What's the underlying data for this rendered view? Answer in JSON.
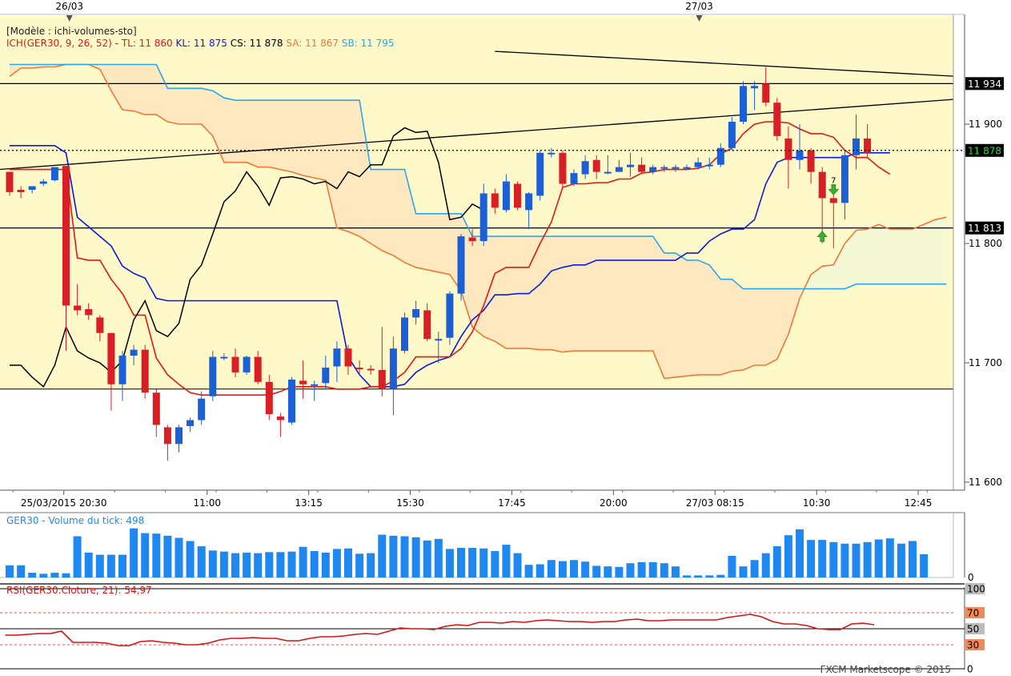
{
  "chart_data": [
    {
      "type": "candlestick",
      "instrument": "GER30",
      "date_markers": [
        "26/03",
        "27/03"
      ],
      "header": {
        "template": "[Modèle : ichi-volumes-sto]",
        "indicator": "ICH(GER30, 9, 26, 52) -",
        "tl": "TL: 11 860",
        "kl": "KL: 11 875",
        "cs": "CS: 11 878",
        "sa": "SA: 11 867",
        "sb": "SB: 11 795"
      },
      "y_ticks": [
        11600,
        11700,
        11800,
        11900
      ],
      "y_tick_labels": [
        "11 600",
        "11 700",
        "11 800",
        "11 900"
      ],
      "ylim": [
        11600,
        11966
      ],
      "x_tick_labels": [
        {
          "i": 4.8,
          "label": "25/03/2015 20:30"
        },
        {
          "i": 17.5,
          "label": "11:00"
        },
        {
          "i": 26.5,
          "label": "13:15"
        },
        {
          "i": 35.5,
          "label": "15:30"
        },
        {
          "i": 44.5,
          "label": "17:45"
        },
        {
          "i": 53.5,
          "label": "20:00"
        },
        {
          "i": 62.5,
          "label": "27/03 08:15"
        },
        {
          "i": 71.5,
          "label": "10:30"
        },
        {
          "i": 80.5,
          "label": "12:45"
        }
      ],
      "price_markers": [
        {
          "value": 11934,
          "label": "11 934",
          "style": "resistance"
        },
        {
          "value": 11878,
          "label": "11 878",
          "style": "current"
        },
        {
          "value": 11813,
          "label": "11 813",
          "style": "support"
        }
      ],
      "support_lines": [
        11934,
        11813,
        11678
      ],
      "trendlines": [
        {
          "from": [
            -1,
            11862
          ],
          "to": [
            84,
            11921
          ]
        },
        {
          "from": [
            43,
            11961
          ],
          "to": [
            84,
            11940
          ]
        }
      ],
      "signals": [
        {
          "i": 72,
          "type": "buy",
          "value": 11805
        },
        {
          "i": 73,
          "type": "sell",
          "value": 11846,
          "label": "7"
        }
      ],
      "candles": [
        {
          "o": 11860,
          "h": 11860,
          "l": 11840,
          "c": 11843
        },
        {
          "o": 11845,
          "h": 11848,
          "l": 11838,
          "c": 11843
        },
        {
          "o": 11845,
          "h": 11848,
          "l": 11842,
          "c": 11848
        },
        {
          "o": 11850,
          "h": 11854,
          "l": 11848,
          "c": 11852
        },
        {
          "o": 11853,
          "h": 11864,
          "l": 11852,
          "c": 11864
        },
        {
          "o": 11865,
          "h": 11865,
          "l": 11710,
          "c": 11748
        },
        {
          "o": 11748,
          "h": 11766,
          "l": 11740,
          "c": 11744
        },
        {
          "o": 11745,
          "h": 11750,
          "l": 11736,
          "c": 11740
        },
        {
          "o": 11738,
          "h": 11740,
          "l": 11718,
          "c": 11725
        },
        {
          "o": 11725,
          "h": 11725,
          "l": 11660,
          "c": 11682
        },
        {
          "o": 11682,
          "h": 11710,
          "l": 11668,
          "c": 11706
        },
        {
          "o": 11706,
          "h": 11715,
          "l": 11698,
          "c": 11711
        },
        {
          "o": 11711,
          "h": 11715,
          "l": 11670,
          "c": 11675
        },
        {
          "o": 11675,
          "h": 11678,
          "l": 11638,
          "c": 11648
        },
        {
          "o": 11646,
          "h": 11648,
          "l": 11618,
          "c": 11632
        },
        {
          "o": 11632,
          "h": 11648,
          "l": 11625,
          "c": 11646
        },
        {
          "o": 11647,
          "h": 11654,
          "l": 11642,
          "c": 11652
        },
        {
          "o": 11652,
          "h": 11676,
          "l": 11648,
          "c": 11670
        },
        {
          "o": 11672,
          "h": 11710,
          "l": 11668,
          "c": 11705
        },
        {
          "o": 11705,
          "h": 11708,
          "l": 11702,
          "c": 11705
        },
        {
          "o": 11705,
          "h": 11712,
          "l": 11688,
          "c": 11692
        },
        {
          "o": 11692,
          "h": 11706,
          "l": 11690,
          "c": 11705
        },
        {
          "o": 11705,
          "h": 11710,
          "l": 11682,
          "c": 11684
        },
        {
          "o": 11684,
          "h": 11690,
          "l": 11652,
          "c": 11657
        },
        {
          "o": 11655,
          "h": 11658,
          "l": 11638,
          "c": 11652
        },
        {
          "o": 11650,
          "h": 11688,
          "l": 11648,
          "c": 11686
        },
        {
          "o": 11685,
          "h": 11702,
          "l": 11670,
          "c": 11682
        },
        {
          "o": 11682,
          "h": 11685,
          "l": 11668,
          "c": 11682
        },
        {
          "o": 11683,
          "h": 11706,
          "l": 11678,
          "c": 11696
        },
        {
          "o": 11697,
          "h": 11718,
          "l": 11684,
          "c": 11712
        },
        {
          "o": 11712,
          "h": 11715,
          "l": 11690,
          "c": 11697
        },
        {
          "o": 11696,
          "h": 11702,
          "l": 11690,
          "c": 11695
        },
        {
          "o": 11695,
          "h": 11698,
          "l": 11690,
          "c": 11694
        },
        {
          "o": 11694,
          "h": 11730,
          "l": 11672,
          "c": 11678
        },
        {
          "o": 11678,
          "h": 11722,
          "l": 11656,
          "c": 11712
        },
        {
          "o": 11710,
          "h": 11742,
          "l": 11708,
          "c": 11738
        },
        {
          "o": 11738,
          "h": 11752,
          "l": 11732,
          "c": 11745
        },
        {
          "o": 11744,
          "h": 11750,
          "l": 11718,
          "c": 11720
        },
        {
          "o": 11720,
          "h": 11726,
          "l": 11700,
          "c": 11720
        },
        {
          "o": 11721,
          "h": 11760,
          "l": 11715,
          "c": 11758
        },
        {
          "o": 11758,
          "h": 11808,
          "l": 11752,
          "c": 11806
        },
        {
          "o": 11805,
          "h": 11812,
          "l": 11798,
          "c": 11802
        },
        {
          "o": 11802,
          "h": 11850,
          "l": 11798,
          "c": 11842
        },
        {
          "o": 11842,
          "h": 11846,
          "l": 11825,
          "c": 11830
        },
        {
          "o": 11828,
          "h": 11858,
          "l": 11826,
          "c": 11852
        },
        {
          "o": 11850,
          "h": 11852,
          "l": 11828,
          "c": 11830
        },
        {
          "o": 11828,
          "h": 11843,
          "l": 11812,
          "c": 11842
        },
        {
          "o": 11840,
          "h": 11878,
          "l": 11836,
          "c": 11876
        },
        {
          "o": 11876,
          "h": 11880,
          "l": 11872,
          "c": 11876
        },
        {
          "o": 11876,
          "h": 11878,
          "l": 11846,
          "c": 11850
        },
        {
          "o": 11850,
          "h": 11862,
          "l": 11848,
          "c": 11859
        },
        {
          "o": 11858,
          "h": 11874,
          "l": 11854,
          "c": 11869
        },
        {
          "o": 11870,
          "h": 11874,
          "l": 11854,
          "c": 11860
        },
        {
          "o": 11860,
          "h": 11874,
          "l": 11858,
          "c": 11860
        },
        {
          "o": 11860,
          "h": 11870,
          "l": 11860,
          "c": 11864
        },
        {
          "o": 11864,
          "h": 11876,
          "l": 11856,
          "c": 11866
        },
        {
          "o": 11866,
          "h": 11872,
          "l": 11858,
          "c": 11860
        },
        {
          "o": 11860,
          "h": 11866,
          "l": 11858,
          "c": 11864
        },
        {
          "o": 11864,
          "h": 11866,
          "l": 11860,
          "c": 11864
        },
        {
          "o": 11864,
          "h": 11866,
          "l": 11860,
          "c": 11864
        },
        {
          "o": 11864,
          "h": 11866,
          "l": 11862,
          "c": 11864
        },
        {
          "o": 11864,
          "h": 11872,
          "l": 11862,
          "c": 11868
        },
        {
          "o": 11866,
          "h": 11872,
          "l": 11862,
          "c": 11866
        },
        {
          "o": 11866,
          "h": 11884,
          "l": 11864,
          "c": 11880
        },
        {
          "o": 11880,
          "h": 11906,
          "l": 11878,
          "c": 11902
        },
        {
          "o": 11902,
          "h": 11936,
          "l": 11900,
          "c": 11932
        },
        {
          "o": 11930,
          "h": 11936,
          "l": 11912,
          "c": 11932
        },
        {
          "o": 11934,
          "h": 11948,
          "l": 11915,
          "c": 11918
        },
        {
          "o": 11918,
          "h": 11922,
          "l": 11886,
          "c": 11890
        },
        {
          "o": 11888,
          "h": 11898,
          "l": 11846,
          "c": 11870
        },
        {
          "o": 11870,
          "h": 11900,
          "l": 11862,
          "c": 11878
        },
        {
          "o": 11878,
          "h": 11880,
          "l": 11850,
          "c": 11860
        },
        {
          "o": 11860,
          "h": 11864,
          "l": 11800,
          "c": 11838
        },
        {
          "o": 11838,
          "h": 11844,
          "l": 11796,
          "c": 11834
        },
        {
          "o": 11834,
          "h": 11878,
          "l": 11820,
          "c": 11874
        },
        {
          "o": 11874,
          "h": 11908,
          "l": 11862,
          "c": 11888
        },
        {
          "o": 11888,
          "h": 11900,
          "l": 11872,
          "c": 11876
        }
      ],
      "tenkan": [
        11862,
        11862,
        11862,
        11862,
        11862,
        11862,
        11788,
        11786,
        11786,
        11770,
        11758,
        11740,
        11740,
        11704,
        11690,
        11682,
        11675,
        11673,
        11673,
        11673,
        11673,
        11673,
        11673,
        11673,
        11676,
        11680,
        11680,
        11680,
        11680,
        11678,
        11678,
        11678,
        11680,
        11680,
        11685,
        11692,
        11705,
        11705,
        11705,
        11705,
        11712,
        11726,
        11748,
        11775,
        11780,
        11780,
        11780,
        11800,
        11818,
        11847,
        11850,
        11850,
        11851,
        11851,
        11854,
        11854,
        11859,
        11860,
        11862,
        11862,
        11862,
        11863,
        11866,
        11875,
        11880,
        11892,
        11900,
        11902,
        11902,
        11901,
        11896,
        11892,
        11892,
        11889,
        11878,
        11872,
        11872,
        11864,
        11858
      ],
      "kijun": [
        11882,
        11882,
        11882,
        11882,
        11882,
        11876,
        11822,
        11814,
        11806,
        11798,
        11781,
        11775,
        11771,
        11754,
        11752,
        11752,
        11752,
        11752,
        11752,
        11752,
        11752,
        11752,
        11752,
        11752,
        11752,
        11752,
        11752,
        11752,
        11752,
        11752,
        11705,
        11690,
        11680,
        11680,
        11680,
        11682,
        11692,
        11698,
        11702,
        11705,
        11722,
        11736,
        11744,
        11757,
        11757,
        11758,
        11758,
        11766,
        11777,
        11780,
        11782,
        11782,
        11786,
        11786,
        11786,
        11786,
        11786,
        11786,
        11786,
        11786,
        11792,
        11792,
        11802,
        11808,
        11812,
        11812,
        11820,
        11850,
        11868,
        11872,
        11872,
        11872,
        11872,
        11872,
        11872,
        11876,
        11876,
        11876,
        11876
      ],
      "chikou": [
        11698,
        11698,
        11688,
        11680,
        11698,
        11730,
        11710,
        11704,
        11700,
        11692,
        11702,
        11736,
        11752,
        11727,
        11722,
        11733,
        11770,
        11782,
        11808,
        11835,
        11844,
        11860,
        11848,
        11832,
        11855,
        11856,
        11854,
        11850,
        11852,
        11846,
        11860,
        11856,
        11866,
        11866,
        11890,
        11897,
        11893,
        11894,
        11868,
        11820,
        11822,
        11833,
        11828
      ],
      "senkou_a": [
        11940,
        11947,
        11947,
        11948,
        11948,
        11950,
        11950,
        11950,
        11946,
        11928,
        11912,
        11911,
        11908,
        11908,
        11902,
        11900,
        11900,
        11900,
        11890,
        11868,
        11868,
        11868,
        11864,
        11864,
        11862,
        11860,
        11857,
        11855,
        11853,
        11813,
        11810,
        11806,
        11800,
        11794,
        11790,
        11784,
        11780,
        11778,
        11776,
        11774,
        11760,
        11730,
        11722,
        11718,
        11712,
        11712,
        11712,
        11711,
        11711,
        11709,
        11710,
        11710,
        11710,
        11710,
        11710,
        11710,
        11710,
        11710,
        11687,
        11688,
        11689,
        11690,
        11690,
        11690,
        11693,
        11694,
        11698,
        11698,
        11703,
        11724,
        11754,
        11774,
        11781,
        11782,
        11800,
        11811,
        11812,
        11816,
        11812,
        11812,
        11812,
        11816,
        11820,
        11822
      ],
      "senkou_b": [
        11950,
        11950,
        11950,
        11950,
        11950,
        11950,
        11950,
        11950,
        11950,
        11950,
        11950,
        11950,
        11950,
        11950,
        11930,
        11930,
        11930,
        11930,
        11928,
        11922,
        11920,
        11920,
        11920,
        11920,
        11920,
        11920,
        11920,
        11920,
        11920,
        11920,
        11920,
        11920,
        11862,
        11862,
        11862,
        11862,
        11825,
        11825,
        11825,
        11825,
        11825,
        11806,
        11806,
        11806,
        11806,
        11806,
        11806,
        11806,
        11806,
        11806,
        11806,
        11806,
        11806,
        11806,
        11806,
        11806,
        11806,
        11806,
        11792,
        11792,
        11786,
        11786,
        11782,
        11770,
        11770,
        11762,
        11762,
        11762,
        11762,
        11762,
        11762,
        11762,
        11762,
        11762,
        11762,
        11766,
        11766,
        11766,
        11766,
        11766,
        11766,
        11766,
        11766,
        11766
      ]
    },
    {
      "type": "bar",
      "title": "GER30 - Volume du tick: 498",
      "y_tick_label": "0",
      "values": [
        0.23,
        0.23,
        0.09,
        0.07,
        0.09,
        0.08,
        0.78,
        0.47,
        0.43,
        0.43,
        0.43,
        0.93,
        0.84,
        0.83,
        0.79,
        0.75,
        0.69,
        0.59,
        0.51,
        0.49,
        0.46,
        0.47,
        0.46,
        0.48,
        0.48,
        0.49,
        0.58,
        0.5,
        0.47,
        0.54,
        0.55,
        0.45,
        0.46,
        0.81,
        0.79,
        0.78,
        0.76,
        0.7,
        0.73,
        0.54,
        0.56,
        0.56,
        0.55,
        0.5,
        0.62,
        0.46,
        0.24,
        0.25,
        0.33,
        0.31,
        0.33,
        0.3,
        0.22,
        0.21,
        0.2,
        0.27,
        0.29,
        0.29,
        0.27,
        0.21,
        0.04,
        0.04,
        0.04,
        0.05,
        0.41,
        0.21,
        0.33,
        0.46,
        0.59,
        0.8,
        0.91,
        0.71,
        0.71,
        0.67,
        0.64,
        0.64,
        0.67,
        0.72,
        0.74,
        0.64,
        0.69,
        0.44
      ]
    },
    {
      "type": "line",
      "title": "RSI(GER30.Cloture, 21): 54,97",
      "ylim": [
        0,
        100
      ],
      "y_tick_labels": [
        "100",
        "70",
        "50",
        "30",
        "0"
      ],
      "levels": [
        100,
        70,
        50,
        30,
        0
      ],
      "values": [
        42,
        42,
        43,
        44,
        44,
        47,
        33,
        33,
        33,
        32,
        29,
        29,
        34,
        35,
        33,
        32,
        30,
        30,
        32,
        36,
        38,
        38,
        39,
        38,
        38,
        35,
        35,
        38,
        40,
        40,
        41,
        43,
        44,
        43,
        47,
        51,
        50,
        50,
        49,
        53,
        55,
        54,
        58,
        58,
        57,
        59,
        58,
        60,
        61,
        60,
        59,
        59,
        58,
        59,
        59,
        61,
        62,
        60,
        60,
        61,
        61,
        61,
        61,
        61,
        64,
        66,
        68,
        65,
        59,
        56,
        56,
        54,
        50,
        49,
        49,
        56,
        57,
        55
      ]
    }
  ],
  "watermark": "FXCM Marketscope © 2015",
  "colors": {
    "candle_up": "#1a5fd6",
    "candle_down": "#d81f26",
    "tenkan": "#e01818",
    "kijun": "#0a1ae0",
    "chikou": "#000000",
    "senkou_a": "#f07838",
    "senkou_b": "#28a8f0",
    "plot_bg": "#fff8c8",
    "cloud_bull": "#fde8c0",
    "cloud_bear": "#f4f8d4",
    "volume": "#1e88f0",
    "rsi": "#d81010"
  }
}
